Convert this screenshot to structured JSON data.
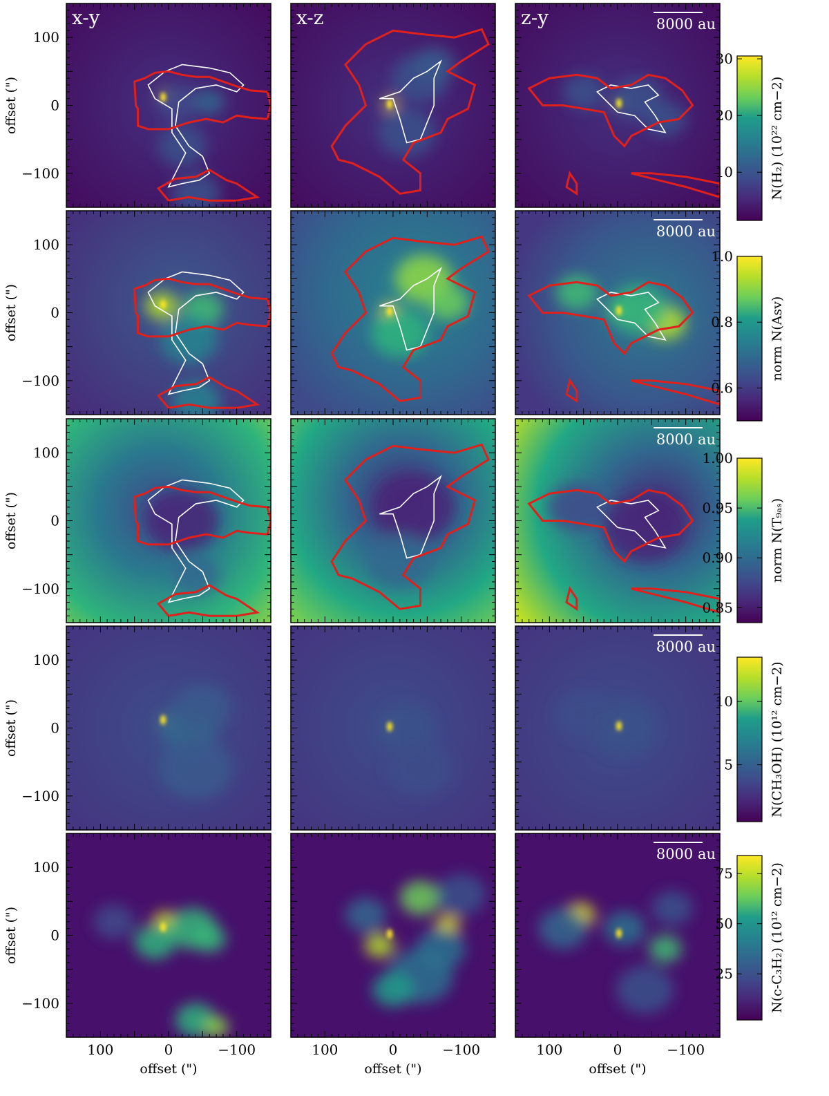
{
  "chart_data": {
    "type": "heatmap",
    "layout": "5 rows x 3 columns of column-density maps with contours",
    "projections": [
      "x-y",
      "x-z",
      "z-y"
    ],
    "scale_bar_label": "8000 au",
    "xlabel": "offset (\")",
    "ylabel": "offset (\")",
    "x_range": [
      150,
      -150
    ],
    "y_range": [
      -150,
      150
    ],
    "x_ticks": [
      100,
      0,
      -100
    ],
    "x_tick_labels": [
      "100",
      "0",
      "−100"
    ],
    "y_ticks": [
      100,
      0,
      -100
    ],
    "y_tick_labels": [
      "100",
      "0",
      "−100"
    ],
    "colormap": "viridis",
    "colormap_stops": [
      "#440154",
      "#482777",
      "#3f4a8a",
      "#31678e",
      "#26838f",
      "#1f9d8a",
      "#6cce5a",
      "#b6de2b",
      "#fee825"
    ],
    "contour_colors": {
      "outer": "#e0201b",
      "inner": "#ffffff"
    },
    "rows": [
      {
        "quantity": "N(H2)",
        "colorbar_label": "N(H₂) (10²² cm−2)",
        "range": [
          1.5,
          30.5
        ],
        "ticks": [
          10,
          20,
          30
        ],
        "tick_labels": [
          "10",
          "20",
          "30"
        ],
        "contours": true
      },
      {
        "quantity": "norm N(Asv)",
        "colorbar_label": "norm N(Asv)",
        "range": [
          0.5,
          1.0
        ],
        "ticks": [
          0.6,
          0.8,
          1.0
        ],
        "tick_labels": [
          "0.6",
          "0.8",
          "1.0"
        ],
        "contours": true
      },
      {
        "quantity": "norm N(Tgas)",
        "colorbar_label": "norm N(T₉ₐₛ)",
        "range": [
          0.835,
          1.0
        ],
        "ticks": [
          0.85,
          0.9,
          0.95,
          1.0
        ],
        "tick_labels": [
          "0.85",
          "0.90",
          "0.95",
          "1.00"
        ],
        "contours": true
      },
      {
        "quantity": "N(CH3OH)",
        "colorbar_label": "N(CH₃OH) (10¹² cm−2)",
        "range": [
          0.5,
          13.5
        ],
        "ticks": [
          5,
          10
        ],
        "tick_labels": [
          "5",
          "10"
        ],
        "contours": false
      },
      {
        "quantity": "N(c-C3H2)",
        "colorbar_label": "N(c-C₃H₂) (10¹² cm−2)",
        "range": [
          2,
          84
        ],
        "ticks": [
          25,
          50,
          75
        ],
        "tick_labels": [
          "25",
          "50",
          "75"
        ],
        "contours": false
      }
    ],
    "peak_positions_arcsec": {
      "x-y": [
        {
          "x": 8,
          "y": 12
        },
        {
          "x": -55,
          "y": 5
        },
        {
          "x": -20,
          "y": -110
        },
        {
          "x": -60,
          "y": -130
        }
      ],
      "x-z": [
        {
          "x": 5,
          "y": 2
        },
        {
          "x": -40,
          "y": 50
        },
        {
          "x": -80,
          "y": 15
        },
        {
          "x": 15,
          "y": -20
        },
        {
          "x": 20,
          "y": -85
        }
      ],
      "z-y": [
        {
          "x": -2,
          "y": 3
        },
        {
          "x": 60,
          "y": 30
        },
        {
          "x": -70,
          "y": -15
        }
      ]
    }
  }
}
